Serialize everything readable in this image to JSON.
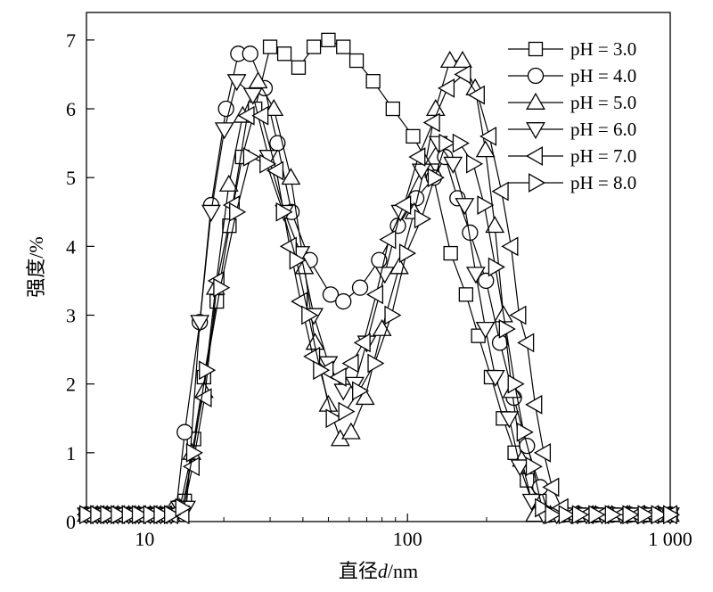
{
  "chart_data": {
    "type": "line",
    "x_scale": "log",
    "xlabel_prefix": "直径",
    "xlabel_var": "d",
    "xlabel_unit": "/nm",
    "ylabel": "强度/%",
    "xlim": [
      6,
      1000
    ],
    "ylim": [
      0,
      7.4
    ],
    "x_ticks": [
      10,
      100,
      1000
    ],
    "x_tick_labels": [
      "10",
      "100",
      "1 000"
    ],
    "y_ticks": [
      0,
      1,
      2,
      3,
      4,
      5,
      6,
      7
    ],
    "y_tick_labels": [
      "0",
      "1",
      "2",
      "3",
      "4",
      "5",
      "6",
      "7"
    ],
    "grid": false,
    "legend_position": "top-right",
    "series": [
      {
        "name": "pH = 3.0",
        "marker": "square",
        "points": [
          [
            6,
            0.1
          ],
          [
            6.6,
            0.1
          ],
          [
            7.2,
            0.1
          ],
          [
            7.9,
            0.1
          ],
          [
            8.7,
            0.1
          ],
          [
            9.5,
            0.1
          ],
          [
            10.5,
            0.1
          ],
          [
            11.5,
            0.1
          ],
          [
            12.6,
            0.1
          ],
          [
            13.6,
            0.1
          ],
          [
            14.2,
            0.3
          ],
          [
            15.4,
            1.2
          ],
          [
            16.8,
            2.1
          ],
          [
            18.8,
            3.2
          ],
          [
            21,
            4.3
          ],
          [
            23.5,
            5.3
          ],
          [
            26.3,
            6.0
          ],
          [
            30,
            6.9
          ],
          [
            34,
            6.8
          ],
          [
            38.5,
            6.6
          ],
          [
            44,
            6.9
          ],
          [
            50,
            7.0
          ],
          [
            57,
            6.9
          ],
          [
            64,
            6.7
          ],
          [
            74,
            6.4
          ],
          [
            88,
            6.0
          ],
          [
            105,
            5.6
          ],
          [
            124,
            5.1
          ],
          [
            146,
            3.9
          ],
          [
            167,
            3.3
          ],
          [
            186,
            2.7
          ],
          [
            208,
            2.1
          ],
          [
            231,
            1.5
          ],
          [
            256,
            1.0
          ],
          [
            285,
            0.6
          ],
          [
            318,
            0.3
          ],
          [
            350,
            0.1
          ],
          [
            390,
            0.1
          ],
          [
            450,
            0.1
          ],
          [
            520,
            0.1
          ],
          [
            600,
            0.1
          ],
          [
            700,
            0.1
          ],
          [
            800,
            0.1
          ],
          [
            900,
            0.1
          ],
          [
            1000,
            0.1
          ]
        ]
      },
      {
        "name": "pH = 4.0",
        "marker": "circle",
        "points": [
          [
            6,
            0.1
          ],
          [
            6.6,
            0.1
          ],
          [
            7.2,
            0.1
          ],
          [
            7.9,
            0.1
          ],
          [
            8.7,
            0.1
          ],
          [
            9.5,
            0.1
          ],
          [
            10.5,
            0.1
          ],
          [
            11.5,
            0.1
          ],
          [
            12.6,
            0.1
          ],
          [
            13.2,
            0.2
          ],
          [
            14.2,
            1.3
          ],
          [
            16.2,
            2.9
          ],
          [
            17.9,
            4.6
          ],
          [
            20.4,
            6.0
          ],
          [
            22.7,
            6.8
          ],
          [
            25.2,
            6.8
          ],
          [
            28.6,
            6.3
          ],
          [
            32,
            5.5
          ],
          [
            36.2,
            4.5
          ],
          [
            42.5,
            3.8
          ],
          [
            51,
            3.3
          ],
          [
            57,
            3.2
          ],
          [
            66,
            3.4
          ],
          [
            78,
            3.8
          ],
          [
            92,
            4.3
          ],
          [
            108,
            4.7
          ],
          [
            126,
            5.0
          ],
          [
            139,
            5.3
          ],
          [
            155,
            4.7
          ],
          [
            173,
            4.2
          ],
          [
            199,
            3.5
          ],
          [
            225,
            2.6
          ],
          [
            254,
            1.8
          ],
          [
            285,
            1.1
          ],
          [
            320,
            0.5
          ],
          [
            345,
            0.1
          ],
          [
            390,
            0.1
          ],
          [
            450,
            0.1
          ],
          [
            520,
            0.1
          ],
          [
            600,
            0.1
          ],
          [
            700,
            0.1
          ],
          [
            800,
            0.1
          ],
          [
            900,
            0.1
          ],
          [
            1000,
            0.1
          ]
        ]
      },
      {
        "name": "pH = 5.0",
        "marker": "triangle-up",
        "points": [
          [
            6,
            0.1
          ],
          [
            6.6,
            0.1
          ],
          [
            7.2,
            0.1
          ],
          [
            7.9,
            0.1
          ],
          [
            8.7,
            0.1
          ],
          [
            9.5,
            0.1
          ],
          [
            10.5,
            0.1
          ],
          [
            11.5,
            0.1
          ],
          [
            12.6,
            0.1
          ],
          [
            13.6,
            0.2
          ],
          [
            15.1,
            1.0
          ],
          [
            16.8,
            1.9
          ],
          [
            18.6,
            3.4
          ],
          [
            20.9,
            4.9
          ],
          [
            23.6,
            5.9
          ],
          [
            27,
            6.4
          ],
          [
            31,
            6.0
          ],
          [
            36,
            5.0
          ],
          [
            40.5,
            3.7
          ],
          [
            44.5,
            2.6
          ],
          [
            50,
            1.7
          ],
          [
            55.5,
            1.2
          ],
          [
            61,
            1.3
          ],
          [
            69,
            1.8
          ],
          [
            80,
            2.8
          ],
          [
            93,
            3.7
          ],
          [
            106,
            4.5
          ],
          [
            117,
            5.2
          ],
          [
            128,
            6.0
          ],
          [
            145,
            6.7
          ],
          [
            162,
            6.7
          ],
          [
            181,
            6.3
          ],
          [
            198,
            5.4
          ],
          [
            215,
            4.3
          ],
          [
            232,
            3.0
          ],
          [
            250,
            1.9
          ],
          [
            272,
            0.9
          ],
          [
            305,
            0.1
          ],
          [
            350,
            0.1
          ],
          [
            400,
            0.1
          ],
          [
            450,
            0.1
          ],
          [
            520,
            0.1
          ],
          [
            600,
            0.1
          ],
          [
            700,
            0.1
          ],
          [
            800,
            0.1
          ],
          [
            900,
            0.1
          ],
          [
            1000,
            0.1
          ]
        ]
      },
      {
        "name": "pH = 6.0",
        "marker": "triangle-down",
        "points": [
          [
            6,
            0.1
          ],
          [
            6.6,
            0.1
          ],
          [
            7.2,
            0.1
          ],
          [
            7.9,
            0.1
          ],
          [
            8.7,
            0.1
          ],
          [
            9.5,
            0.1
          ],
          [
            10.5,
            0.1
          ],
          [
            11.5,
            0.1
          ],
          [
            12.6,
            0.1
          ],
          [
            13.6,
            0.2
          ],
          [
            14.4,
            0.2
          ],
          [
            16.2,
            2.9
          ],
          [
            17.9,
            4.5
          ],
          [
            20.1,
            5.7
          ],
          [
            22.4,
            6.4
          ],
          [
            25.8,
            6.2
          ],
          [
            29.6,
            5.3
          ],
          [
            34,
            4.5
          ],
          [
            39.2,
            3.9
          ],
          [
            44,
            3.0
          ],
          [
            50,
            2.3
          ],
          [
            57,
            1.9
          ],
          [
            63,
            2.0
          ],
          [
            70,
            2.6
          ],
          [
            82,
            3.6
          ],
          [
            94,
            4.5
          ],
          [
            113,
            5.1
          ],
          [
            131,
            5.5
          ],
          [
            149,
            5.2
          ],
          [
            165,
            4.6
          ],
          [
            182,
            3.6
          ],
          [
            198,
            2.8
          ],
          [
            216,
            2.1
          ],
          [
            244,
            1.5
          ],
          [
            268,
            0.8
          ],
          [
            297,
            0.3
          ],
          [
            330,
            0.1
          ],
          [
            370,
            0.1
          ],
          [
            420,
            0.1
          ],
          [
            480,
            0.1
          ],
          [
            550,
            0.1
          ],
          [
            650,
            0.1
          ],
          [
            750,
            0.1
          ],
          [
            850,
            0.1
          ],
          [
            1000,
            0.1
          ]
        ]
      },
      {
        "name": "pH = 7.0",
        "marker": "triangle-left",
        "points": [
          [
            6,
            0.1
          ],
          [
            6.6,
            0.1
          ],
          [
            7.2,
            0.1
          ],
          [
            7.9,
            0.1
          ],
          [
            8.7,
            0.1
          ],
          [
            9.5,
            0.1
          ],
          [
            10.5,
            0.1
          ],
          [
            11.5,
            0.1
          ],
          [
            12.6,
            0.1
          ],
          [
            13.9,
            0.1
          ],
          [
            15.2,
            0.8
          ],
          [
            16.9,
            1.8
          ],
          [
            18.9,
            3.5
          ],
          [
            21.6,
            4.6
          ],
          [
            24.6,
            5.9
          ],
          [
            27.8,
            5.9
          ],
          [
            31.7,
            5.1
          ],
          [
            35.6,
            4.0
          ],
          [
            39.2,
            3.2
          ],
          [
            43.7,
            2.4
          ],
          [
            49.2,
            2.2
          ],
          [
            55,
            2.1
          ],
          [
            61.3,
            2.3
          ],
          [
            68,
            2.6
          ],
          [
            76,
            3.3
          ],
          [
            85,
            4.1
          ],
          [
            97,
            4.6
          ],
          [
            110,
            5.3
          ],
          [
            125,
            5.8
          ],
          [
            142,
            6.3
          ],
          [
            164,
            6.5
          ],
          [
            185,
            6.2
          ],
          [
            205,
            5.6
          ],
          [
            228,
            4.8
          ],
          [
            248,
            4.0
          ],
          [
            266,
            3.0
          ],
          [
            285,
            2.6
          ],
          [
            306,
            1.7
          ],
          [
            330,
            1.0
          ],
          [
            355,
            0.5
          ],
          [
            385,
            0.2
          ],
          [
            420,
            0.1
          ],
          [
            480,
            0.1
          ],
          [
            550,
            0.1
          ],
          [
            650,
            0.1
          ],
          [
            750,
            0.1
          ],
          [
            850,
            0.1
          ],
          [
            1000,
            0.1
          ]
        ]
      },
      {
        "name": "pH = 8.0",
        "marker": "triangle-right",
        "points": [
          [
            6,
            0.1
          ],
          [
            6.6,
            0.1
          ],
          [
            7.2,
            0.1
          ],
          [
            7.9,
            0.1
          ],
          [
            8.7,
            0.1
          ],
          [
            9.5,
            0.1
          ],
          [
            10.5,
            0.1
          ],
          [
            11.5,
            0.1
          ],
          [
            12.6,
            0.1
          ],
          [
            13.9,
            0.2
          ],
          [
            15.3,
            1.0
          ],
          [
            17.1,
            2.2
          ],
          [
            19.4,
            3.4
          ],
          [
            22.3,
            4.5
          ],
          [
            25.2,
            5.3
          ],
          [
            29.1,
            5.2
          ],
          [
            33.6,
            4.5
          ],
          [
            37.8,
            3.8
          ],
          [
            42,
            3.0
          ],
          [
            46.5,
            2.2
          ],
          [
            52,
            1.5
          ],
          [
            58,
            1.6
          ],
          [
            65.5,
            1.9
          ],
          [
            75,
            2.3
          ],
          [
            87,
            3.0
          ],
          [
            99,
            3.9
          ],
          [
            113,
            4.4
          ],
          [
            127,
            5.0
          ],
          [
            140,
            5.5
          ],
          [
            158,
            5.5
          ],
          [
            178,
            5.2
          ],
          [
            196,
            4.6
          ],
          [
            216,
            3.7
          ],
          [
            237,
            2.8
          ],
          [
            256,
            2.0
          ],
          [
            277,
            1.3
          ],
          [
            300,
            0.8
          ],
          [
            325,
            0.2
          ],
          [
            355,
            0.1
          ],
          [
            400,
            0.1
          ],
          [
            450,
            0.1
          ],
          [
            520,
            0.1
          ],
          [
            600,
            0.1
          ],
          [
            700,
            0.1
          ],
          [
            800,
            0.1
          ],
          [
            900,
            0.1
          ],
          [
            1000,
            0.1
          ]
        ]
      }
    ]
  }
}
